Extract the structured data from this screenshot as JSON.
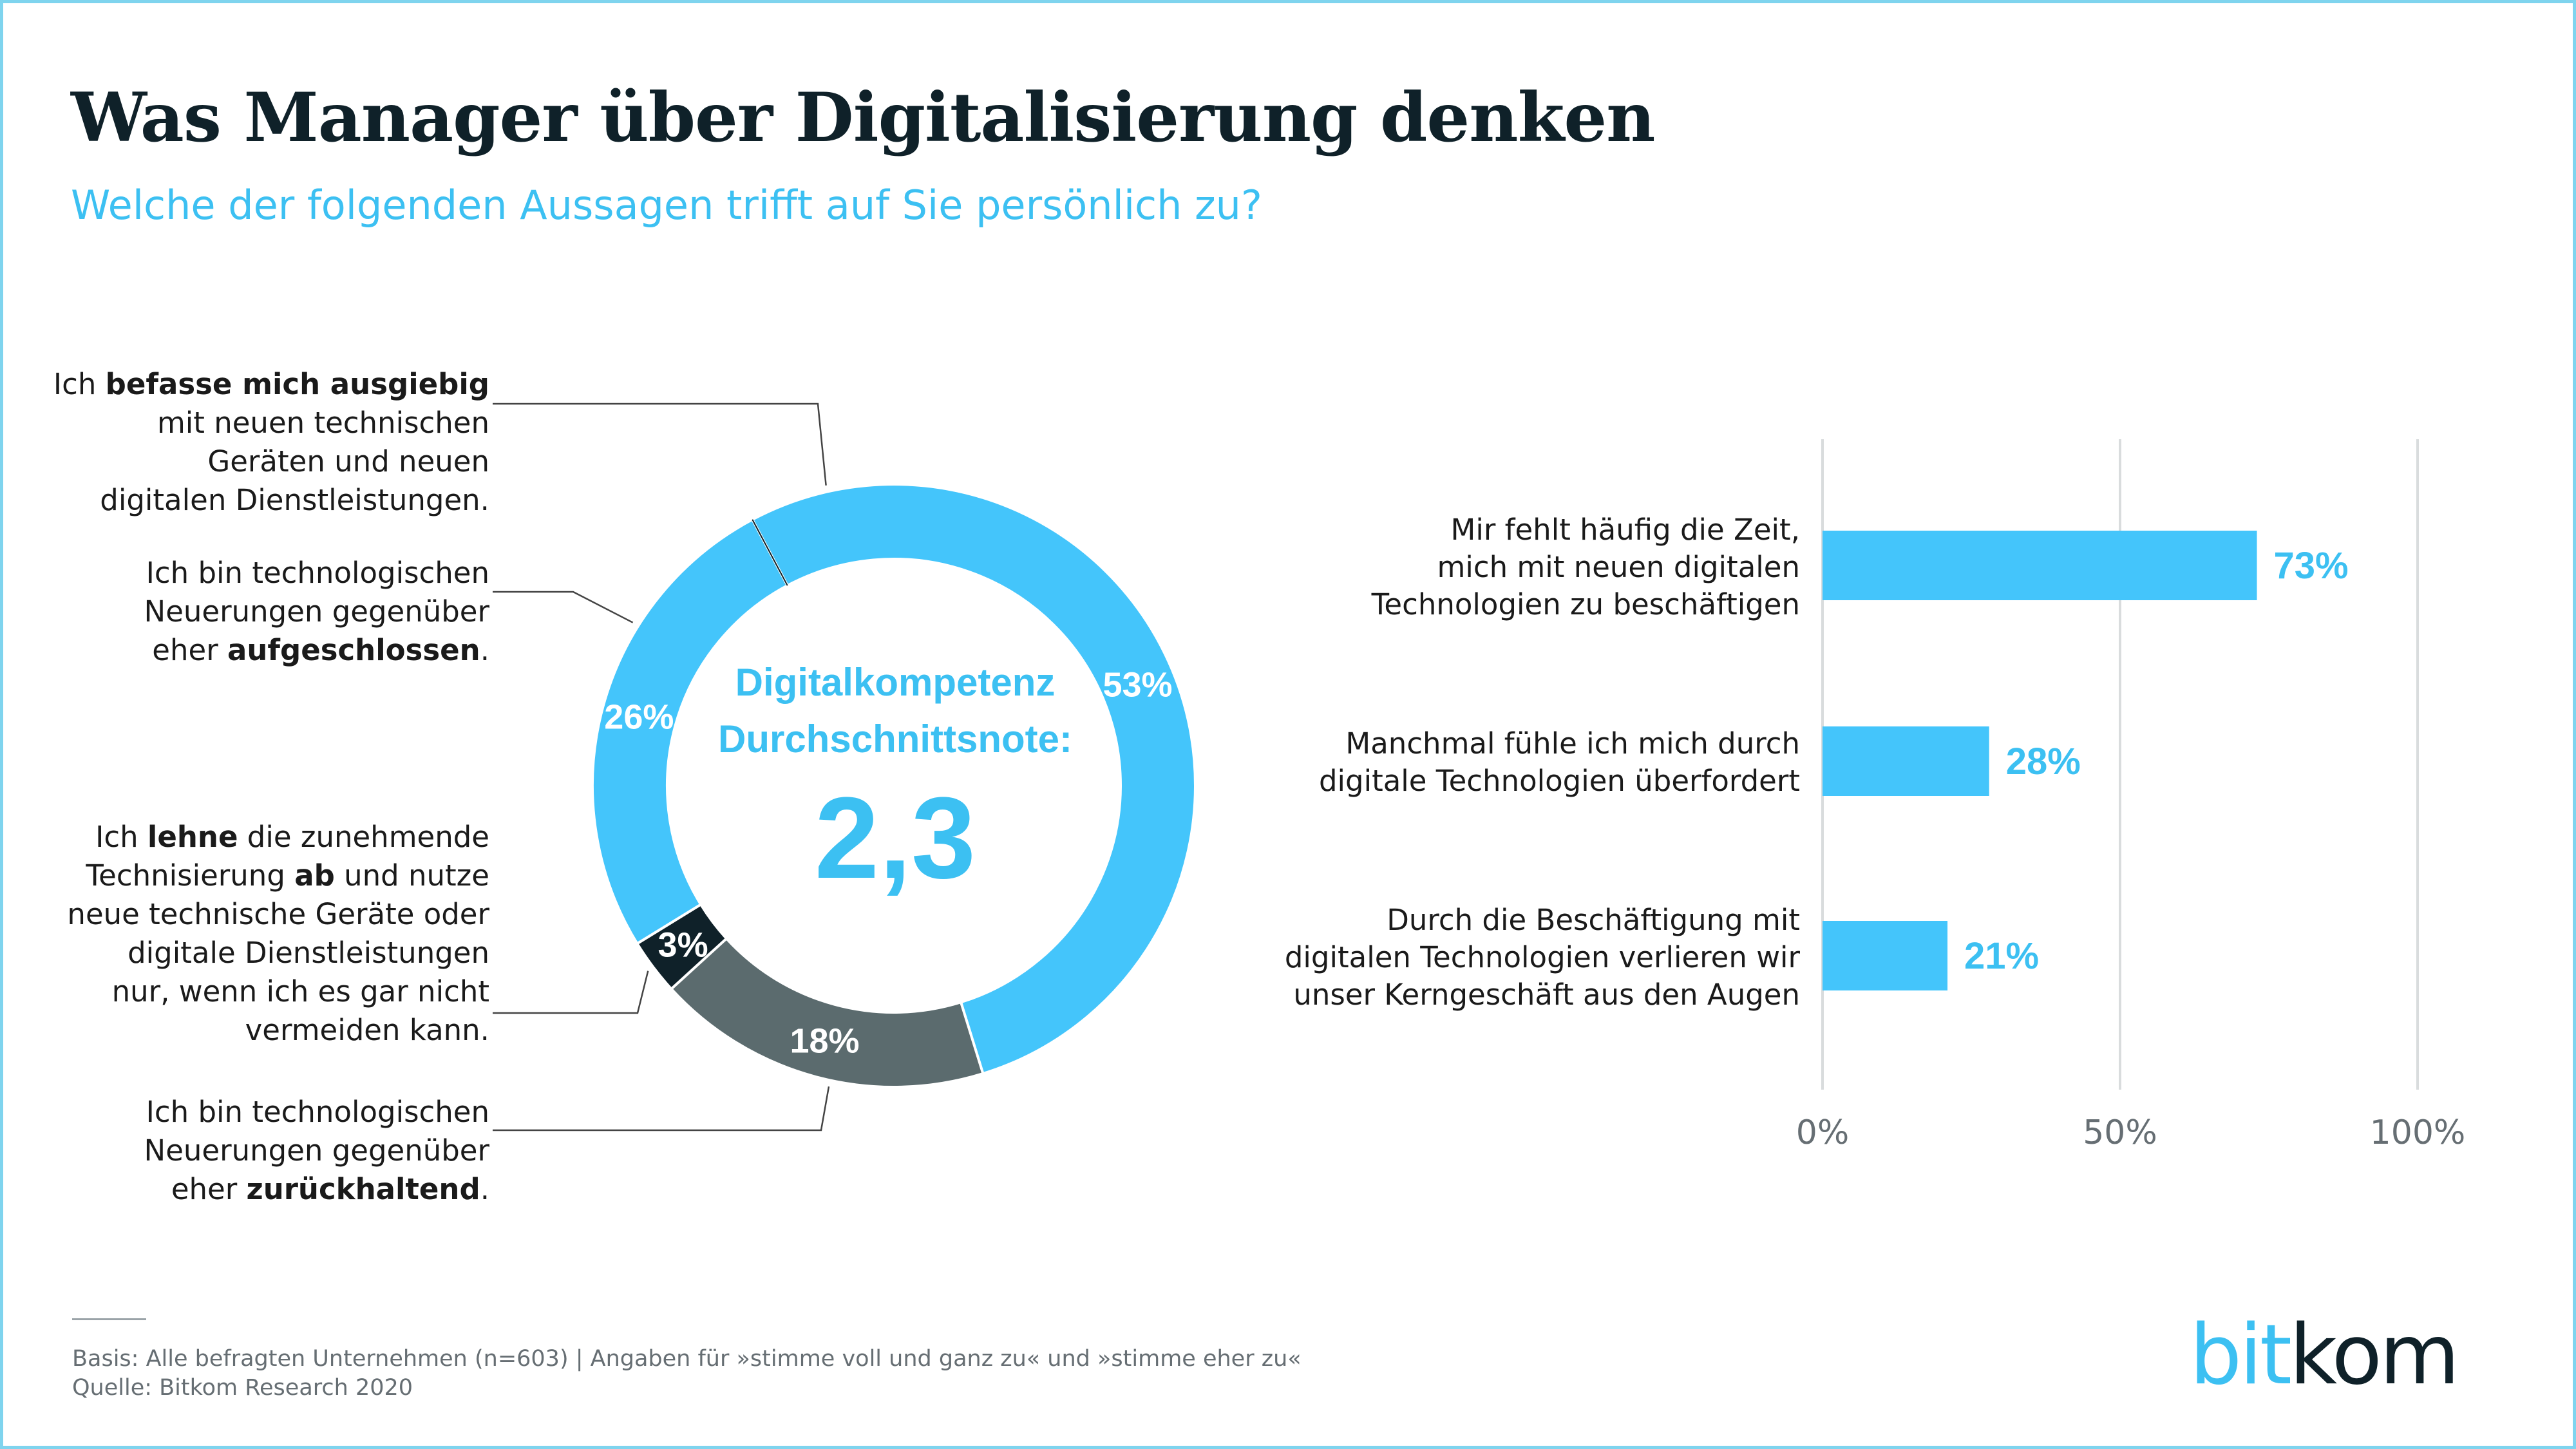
{
  "header": {
    "title": "Was Manager über Digitalisierung denken",
    "subtitle": "Welche der folgenden Aussagen trifft auf Sie persönlich zu?"
  },
  "chart_data": [
    {
      "type": "pie",
      "donut": true,
      "center_text": {
        "line1": "Digitalkompetenz",
        "line2": "Durchschnittsnote:",
        "value": "2,3"
      },
      "slices": [
        {
          "name": "Ich befasse mich ausgiebig mit neuen technischen Geräten und neuen digitalen Dienstleistungen.",
          "label_lines": [
            [
              {
                "t": "Ich "
              },
              {
                "t": "befasse mich ausgiebig",
                "b": true
              }
            ],
            [
              {
                "t": "mit neuen technischen"
              }
            ],
            [
              {
                "t": "Geräten und neuen"
              }
            ],
            [
              {
                "t": "digitalen Dienstleistungen."
              }
            ]
          ],
          "value": 53,
          "value_label": "53%",
          "color": "#44c5fb"
        },
        {
          "name": "Ich bin technologischen Neuerungen gegenüber eher zurückhaltend.",
          "label_lines": [
            [
              {
                "t": "Ich bin technologischen"
              }
            ],
            [
              {
                "t": "Neuerungen gegenüber"
              }
            ],
            [
              {
                "t": "eher "
              },
              {
                "t": "zurückhaltend",
                "b": true
              },
              {
                "t": "."
              }
            ]
          ],
          "value": 18,
          "value_label": "18%",
          "color": "#5b6b6e"
        },
        {
          "name": "Ich lehne die zunehmende Technisierung ab und nutze neue technische Geräte oder digitale Dienstleistungen nur, wenn ich es gar nicht vermeiden kann.",
          "label_lines": [
            [
              {
                "t": "Ich "
              },
              {
                "t": "lehne",
                "b": true
              },
              {
                "t": " die zunehmende"
              }
            ],
            [
              {
                "t": "Technisierung "
              },
              {
                "t": "ab",
                "b": true
              },
              {
                "t": " und nutze"
              }
            ],
            [
              {
                "t": "neue technische Geräte oder"
              }
            ],
            [
              {
                "t": "digitale Dienstleistungen"
              }
            ],
            [
              {
                "t": "nur, wenn ich es gar nicht"
              }
            ],
            [
              {
                "t": "vermeiden kann."
              }
            ]
          ],
          "value": 3,
          "value_label": "3%",
          "color": "#0f2129"
        },
        {
          "name": "Ich bin technologischen Neuerungen gegenüber eher aufgeschlossen.",
          "label_lines": [
            [
              {
                "t": "Ich bin technologischen"
              }
            ],
            [
              {
                "t": "Neuerungen gegenüber"
              }
            ],
            [
              {
                "t": "eher "
              },
              {
                "t": "aufgeschlossen",
                "b": true
              },
              {
                "t": "."
              }
            ]
          ],
          "value": 26,
          "value_label": "26%",
          "color": "#44c5fb"
        }
      ]
    },
    {
      "type": "bar",
      "orientation": "horizontal",
      "categories": [
        "Mir fehlt häufig die Zeit, mich mit neuen digitalen Technologien zu beschäftigen",
        "Manchmal fühle ich mich durch digitale Technologien überfordert",
        "Durch die Beschäftigung mit digitalen Technologien verlieren wir unser Kerngeschäft aus den Augen"
      ],
      "category_lines": [
        [
          "Mir fehlt häufig die Zeit,",
          "mich mit neuen digitalen",
          "Technologien zu beschäftigen"
        ],
        [
          "Manchmal fühle ich mich durch",
          "digitale Technologien überfordert"
        ],
        [
          "Durch die Beschäftigung mit",
          "digitalen Technologien verlieren wir",
          "unser Kerngeschäft aus den Augen"
        ]
      ],
      "values": [
        73,
        28,
        21
      ],
      "value_labels": [
        "73%",
        "28%",
        "21%"
      ],
      "xlim": [
        0,
        100
      ],
      "xticks": [
        0,
        50,
        100
      ],
      "xtick_labels": [
        "0%",
        "50%",
        "100%"
      ],
      "grid": true,
      "bar_color": "#44c5fb",
      "grid_color": "#d9dcdd"
    }
  ],
  "footer": {
    "basis": "Basis: Alle befragten Unternehmen (n=603) | Angaben für »stimme voll und ganz zu« und »stimme eher zu«",
    "source": "Quelle: Bitkom Research 2020"
  },
  "logo": {
    "part1": "bit",
    "part2": "kom"
  },
  "colors": {
    "frame": "#7fd4ee",
    "accent": "#3cc0f2",
    "dark": "#0f2129"
  }
}
